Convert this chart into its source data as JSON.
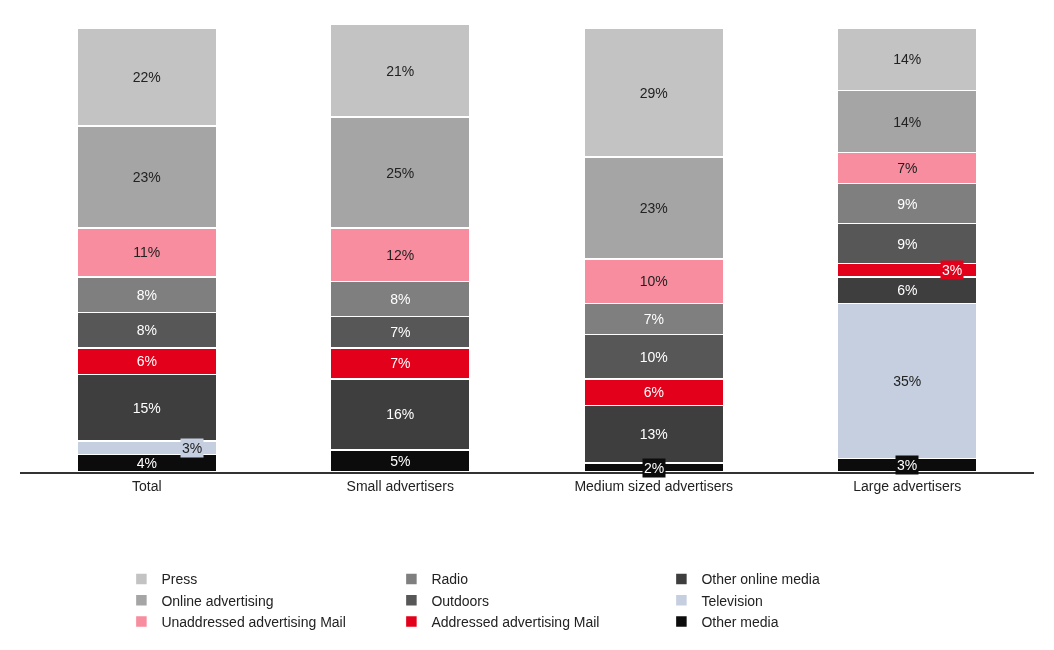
{
  "chart_data": {
    "type": "bar",
    "stacked": true,
    "legend": "bottom",
    "categories": [
      "Total",
      "Small advertisers",
      "Medium sized advertisers",
      "Large advertisers"
    ],
    "series": [
      {
        "name": "Other media",
        "color": "#0c0c0c",
        "values": [
          4,
          5,
          2,
          3
        ],
        "value_labels": [
          "4%",
          "5%",
          "2%",
          "3%"
        ]
      },
      {
        "name": "Television",
        "color": "#c5cfe0",
        "values": [
          3,
          null,
          null,
          35
        ],
        "value_labels": [
          "3%",
          null,
          null,
          "35%"
        ]
      },
      {
        "name": "Other online media",
        "color": "#3e3e3e",
        "values": [
          15,
          16,
          13,
          6
        ],
        "value_labels": [
          "15%",
          "16%",
          "13%",
          "6%"
        ]
      },
      {
        "name": "Addressed advertising Mail",
        "color": "#e2001a",
        "values": [
          6,
          7,
          6,
          3
        ],
        "value_labels": [
          "6%",
          "7%",
          "6%",
          "3%"
        ]
      },
      {
        "name": "Outdoors",
        "color": "#575757",
        "values": [
          8,
          7,
          10,
          9
        ],
        "value_labels": [
          "8%",
          "7%",
          "10%",
          "9%"
        ]
      },
      {
        "name": "Radio",
        "color": "#7f7f7f",
        "values": [
          8,
          8,
          7,
          9
        ],
        "value_labels": [
          "8%",
          "8%",
          "7%",
          "9%"
        ]
      },
      {
        "name": "Unaddressed advertising Mail",
        "color": "#f78d9e",
        "values": [
          11,
          12,
          10,
          7
        ],
        "value_labels": [
          "11%",
          "12%",
          "10%",
          "7%"
        ]
      },
      {
        "name": "Online advertising",
        "color": "#a5a5a5",
        "values": [
          23,
          25,
          23,
          14
        ],
        "value_labels": [
          "23%",
          "25%",
          "23%",
          "14%"
        ]
      },
      {
        "name": "Press",
        "color": "#c3c3c3",
        "values": [
          22,
          21,
          29,
          14
        ],
        "value_labels": [
          "22%",
          "21%",
          "29%",
          "14%"
        ]
      }
    ]
  }
}
